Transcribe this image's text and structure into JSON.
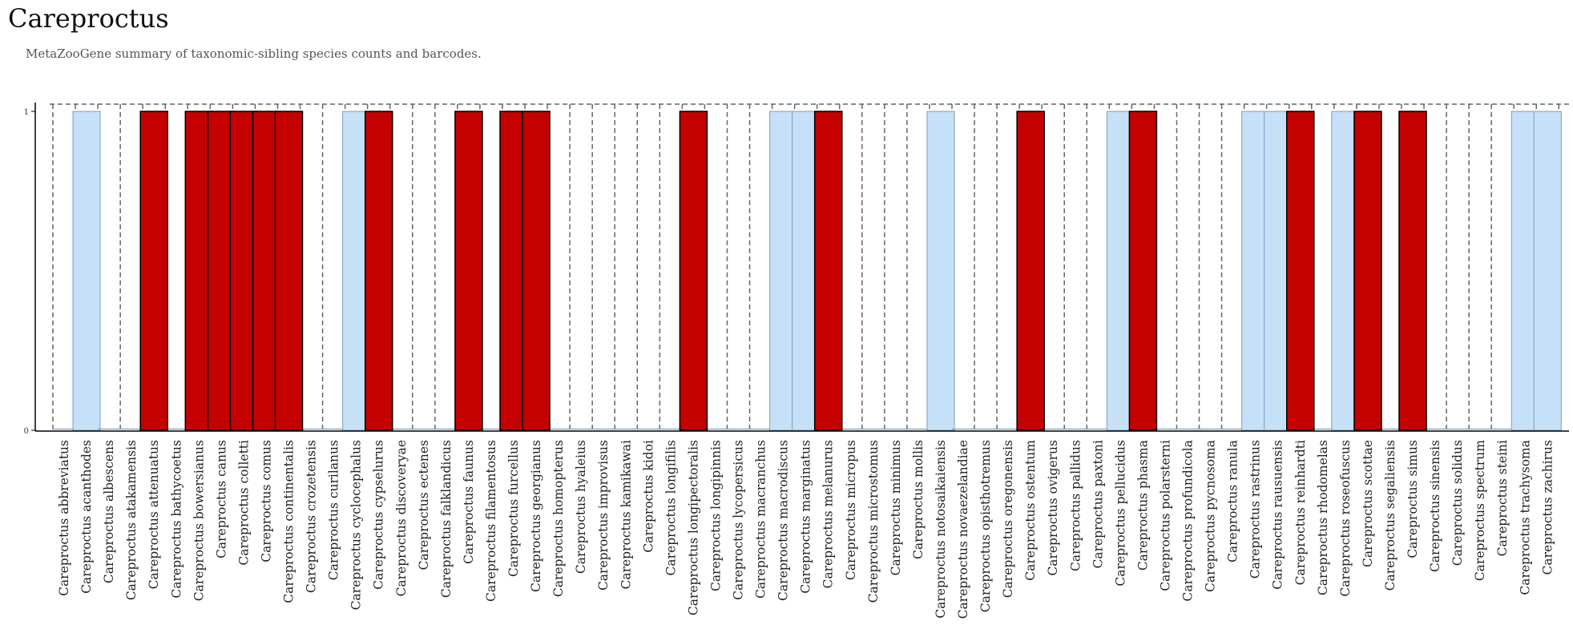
{
  "header": {
    "title": "Careproctus",
    "subtitle": "MetaZooGene summary of taxonomic-sibling species counts and barcodes."
  },
  "colors": {
    "barcoded_fill": "#c40000",
    "barcoded_stroke": "#000000",
    "sibling_fill": "#c6e0f8",
    "sibling_stroke": "#7a9cc4",
    "dashed_outline": "#666666",
    "axis": "#000000"
  },
  "chart_data": {
    "type": "bar",
    "ylim": [
      0,
      1
    ],
    "yticks": [
      0,
      1
    ],
    "grid": false,
    "legend": "none",
    "categories": [
      "Careproctus abbreviatus",
      "Careproctus acanthodes",
      "Careproctus albescens",
      "Careproctus atakamensis",
      "Careproctus attenuatus",
      "Careproctus bathycoetus",
      "Careproctus bowersianus",
      "Careproctus canus",
      "Careproctus colletti",
      "Careproctus comus",
      "Careproctus continentalis",
      "Careproctus crozetensis",
      "Careproctus curilanus",
      "Careproctus cyclocephalus",
      "Careproctus cypselurus",
      "Careproctus discoveryae",
      "Careproctus ectenes",
      "Careproctus falklandicus",
      "Careproctus faunus",
      "Careproctus filamentosus",
      "Careproctus furcellus",
      "Careproctus georgianus",
      "Careproctus homopterus",
      "Careproctus hyaleius",
      "Careproctus improvisus",
      "Careproctus kamikawai",
      "Careproctus kidoi",
      "Careproctus longifilis",
      "Careproctus longipectoralis",
      "Careproctus longipinnis",
      "Careproctus lycopersicus",
      "Careproctus macranchus",
      "Careproctus macrodiscus",
      "Careproctus marginatus",
      "Careproctus melanurus",
      "Careproctus micropus",
      "Careproctus microstomus",
      "Careproctus minimus",
      "Careproctus mollis",
      "Careproctus notosaikaiensis",
      "Careproctus novaezelandiae",
      "Careproctus opisthotremus",
      "Careproctus oregonensis",
      "Careproctus ostentum",
      "Careproctus ovigerus",
      "Careproctus pallidus",
      "Careproctus paxtoni",
      "Careproctus pellucidus",
      "Careproctus phasma",
      "Careproctus polarsterni",
      "Careproctus profundicola",
      "Careproctus pycnosoma",
      "Careproctus ranula",
      "Careproctus rastrinus",
      "Careproctus rausuensis",
      "Careproctus reinhardti",
      "Careproctus rhodomelas",
      "Careproctus roseofuscus",
      "Careproctus scottae",
      "Careproctus segaliensis",
      "Careproctus simus",
      "Careproctus sinensis",
      "Careproctus solidus",
      "Careproctus spectrum",
      "Careproctus steini",
      "Careproctus trachysoma",
      "Careproctus zachirus"
    ],
    "series": [
      {
        "values": [
          0,
          1,
          0,
          0,
          0,
          0,
          0,
          0,
          0,
          0,
          0,
          0,
          0,
          1,
          0,
          0,
          0,
          0,
          0,
          0,
          0,
          0,
          0,
          0,
          0,
          0,
          0,
          0,
          0,
          0,
          0,
          0,
          1,
          1,
          0,
          0,
          0,
          0,
          0,
          1,
          0,
          0,
          0,
          0,
          0,
          0,
          0,
          1,
          0,
          0,
          0,
          0,
          0,
          1,
          1,
          0,
          0,
          1,
          0,
          0,
          0,
          0,
          0,
          0,
          0,
          1,
          1
        ]
      },
      {
        "values": [
          0,
          0,
          0,
          0,
          1,
          0,
          1,
          1,
          1,
          1,
          1,
          0,
          0,
          0,
          1,
          0,
          0,
          0,
          1,
          0,
          1,
          1,
          0,
          0,
          0,
          0,
          0,
          0,
          1,
          0,
          0,
          0,
          0,
          0,
          1,
          0,
          0,
          0,
          0,
          0,
          0,
          0,
          0,
          1,
          0,
          0,
          0,
          0,
          1,
          0,
          0,
          0,
          0,
          0,
          0,
          1,
          0,
          0,
          1,
          0,
          1,
          0,
          0,
          0,
          0,
          0,
          0
        ]
      }
    ],
    "taxonomic_sibling_slot_value": 1
  }
}
